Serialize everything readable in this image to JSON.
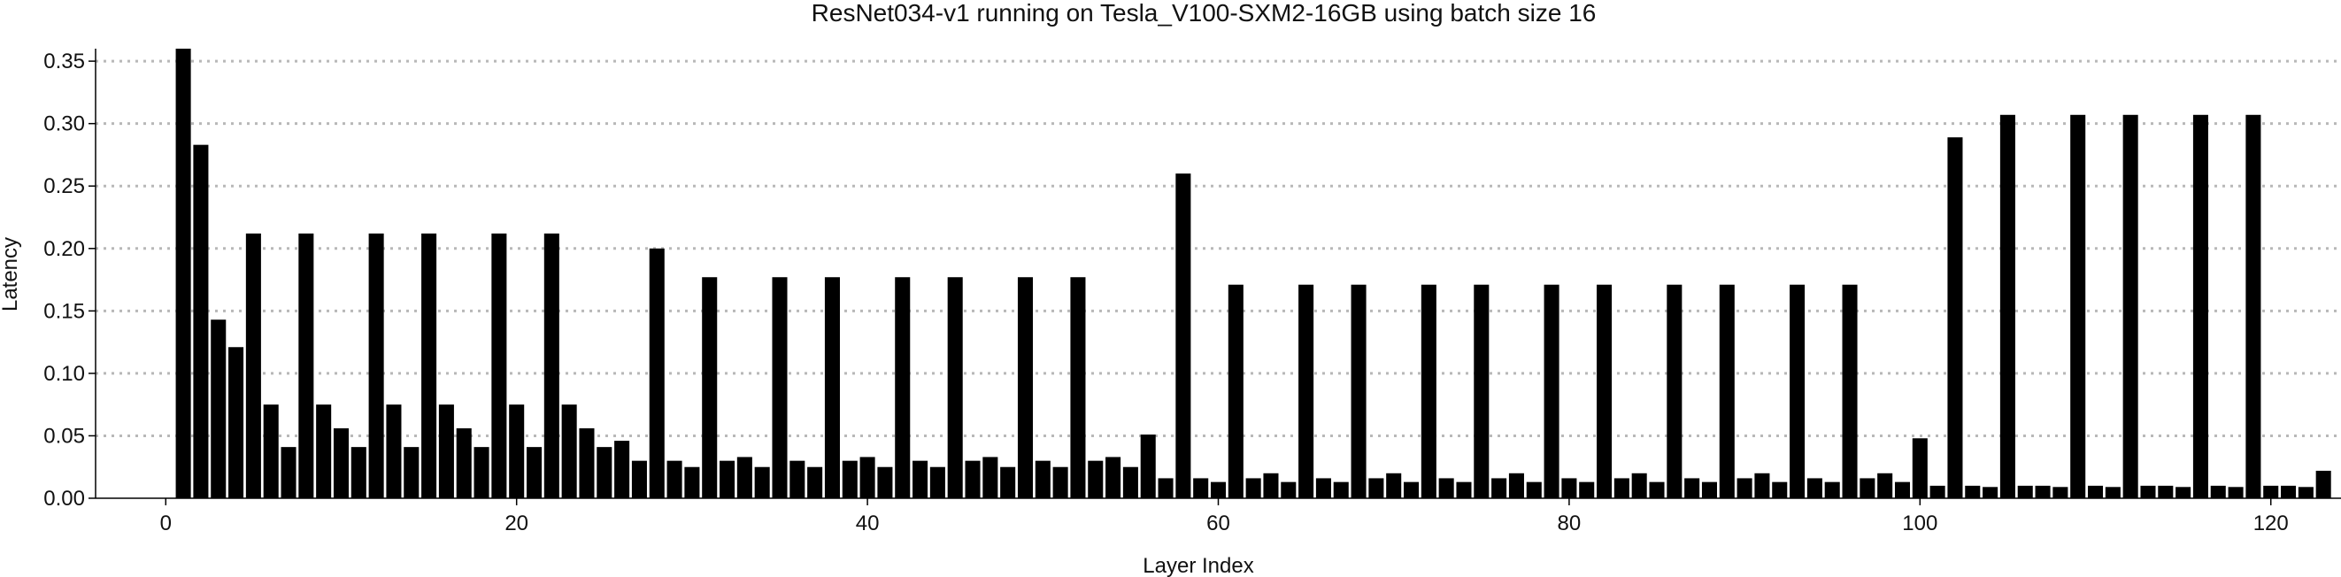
{
  "chart_data": {
    "type": "bar",
    "title": "ResNet034-v1 running on Tesla_V100-SXM2-16GB using batch size 16",
    "xlabel": "Layer Index",
    "ylabel": "Latency",
    "xlim": [
      -4,
      124
    ],
    "ylim": [
      0,
      0.36
    ],
    "x_ticks": [
      0,
      20,
      40,
      60,
      80,
      100,
      120
    ],
    "y_ticks": [
      0.0,
      0.05,
      0.1,
      0.15,
      0.2,
      0.25,
      0.3,
      0.35
    ],
    "x_tick_labels": [
      "0",
      "20",
      "40",
      "60",
      "80",
      "100",
      "120"
    ],
    "y_tick_labels": [
      "0.00",
      "0.05",
      "0.10",
      "0.15",
      "0.20",
      "0.25",
      "0.30",
      "0.35"
    ],
    "grid": {
      "horizontal": true,
      "style": "dotted"
    },
    "bar_color": "#000000",
    "grid_color": "#b8b8b8",
    "axis_color": "#000000",
    "x": [
      1,
      2,
      3,
      4,
      5,
      6,
      7,
      8,
      9,
      10,
      11,
      12,
      13,
      14,
      15,
      16,
      17,
      18,
      19,
      20,
      21,
      22,
      23,
      24,
      25,
      26,
      27,
      28,
      29,
      30,
      31,
      32,
      33,
      34,
      35,
      36,
      37,
      38,
      39,
      40,
      41,
      42,
      43,
      44,
      45,
      46,
      47,
      48,
      49,
      50,
      51,
      52,
      53,
      54,
      55,
      56,
      57,
      58,
      59,
      60,
      61,
      62,
      63,
      64,
      65,
      66,
      67,
      68,
      69,
      70,
      71,
      72,
      73,
      74,
      75,
      76,
      77,
      78,
      79,
      80,
      81,
      82,
      83,
      84,
      85,
      86,
      87,
      88,
      89,
      90,
      91,
      92,
      93,
      94,
      95,
      96,
      97,
      98,
      99,
      100,
      101,
      102,
      103,
      104,
      105,
      106,
      107,
      108,
      109,
      110,
      111,
      112,
      113,
      114,
      115,
      116,
      117,
      118,
      119,
      120,
      121,
      122,
      123
    ],
    "values": [
      0.36,
      0.283,
      0.143,
      0.121,
      0.212,
      0.075,
      0.041,
      0.212,
      0.075,
      0.056,
      0.041,
      0.212,
      0.075,
      0.041,
      0.212,
      0.075,
      0.056,
      0.041,
      0.212,
      0.075,
      0.041,
      0.212,
      0.075,
      0.056,
      0.041,
      0.046,
      0.03,
      0.2,
      0.03,
      0.025,
      0.177,
      0.03,
      0.033,
      0.025,
      0.177,
      0.03,
      0.025,
      0.177,
      0.03,
      0.033,
      0.025,
      0.177,
      0.03,
      0.025,
      0.177,
      0.03,
      0.033,
      0.025,
      0.177,
      0.03,
      0.025,
      0.177,
      0.03,
      0.033,
      0.025,
      0.051,
      0.016,
      0.26,
      0.016,
      0.013,
      0.171,
      0.016,
      0.02,
      0.013,
      0.171,
      0.016,
      0.013,
      0.171,
      0.016,
      0.02,
      0.013,
      0.171,
      0.016,
      0.013,
      0.171,
      0.016,
      0.02,
      0.013,
      0.171,
      0.016,
      0.013,
      0.171,
      0.016,
      0.02,
      0.013,
      0.171,
      0.016,
      0.013,
      0.171,
      0.016,
      0.02,
      0.013,
      0.171,
      0.016,
      0.013,
      0.171,
      0.016,
      0.02,
      0.013,
      0.048,
      0.01,
      0.289,
      0.01,
      0.009,
      0.307,
      0.01,
      0.01,
      0.009,
      0.307,
      0.01,
      0.009,
      0.307,
      0.01,
      0.01,
      0.009,
      0.307,
      0.01,
      0.009,
      0.307,
      0.01,
      0.01,
      0.009,
      0.022
    ]
  }
}
